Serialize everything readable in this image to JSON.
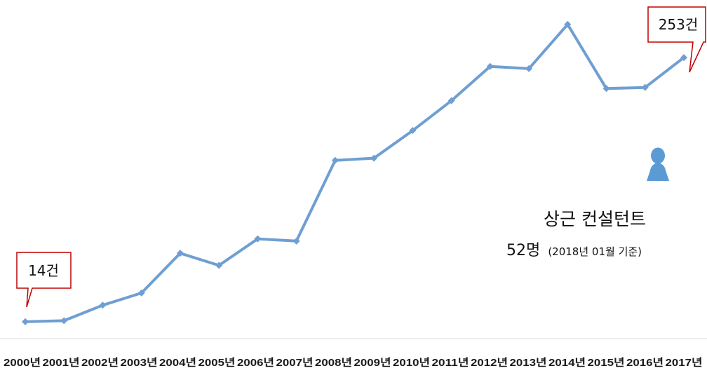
{
  "chart_data": {
    "type": "line",
    "title": "",
    "xlabel": "",
    "ylabel": "",
    "categories": [
      "2000년",
      "2001년",
      "2002년",
      "2003년",
      "2004년",
      "2005년",
      "2006년",
      "2007년",
      "2008년",
      "2009년",
      "2010년",
      "2011년",
      "2012년",
      "2013년",
      "2014년",
      "2015년",
      "2016년",
      "2017년"
    ],
    "values": [
      14,
      15,
      29,
      40,
      76,
      65,
      89,
      87,
      160,
      162,
      187,
      214,
      245,
      243,
      283,
      225,
      226,
      253
    ],
    "ylim": [
      0,
      300
    ],
    "grid": false,
    "legend": "none",
    "line_color": "#6f9fd2"
  },
  "callouts": {
    "first": "14건",
    "last": "253건",
    "border_color": "#c00000"
  },
  "consultants": {
    "icon": "person-icon",
    "icon_color": "#5b9bd5",
    "title": "상근 컨설턴트",
    "count": "52명",
    "note": "(2018년  01월  기준)"
  }
}
